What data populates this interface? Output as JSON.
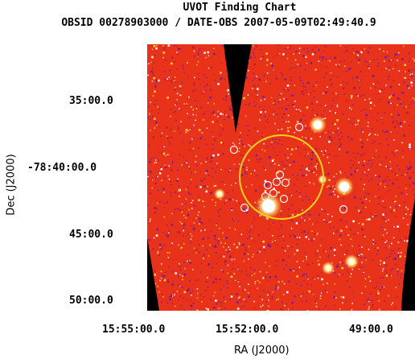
{
  "header": {
    "title": "UVOT Finding Chart",
    "subtitle": "OBSID 00278903000 / DATE-OBS 2007-05-09T02:49:40.9"
  },
  "axes": {
    "xlabel": "RA (J2000)",
    "ylabel": "Dec (J2000)",
    "xticks": [
      "15:55:00.0",
      "15:52:00.0",
      "49:00.0"
    ],
    "yticks": [
      "35:00.0",
      "-78:40:00.0",
      "45:00.0",
      "50:00.0"
    ]
  },
  "colors": {
    "background_field": "#e8331a",
    "noise_dark": "#7a1a9a",
    "noise_light": "#ffd23a",
    "circle": "#f2d21a",
    "source_marker": "#ffffff",
    "mask": "#000000"
  },
  "image": {
    "description_icon": "sky-image",
    "circle_count": 1,
    "source_marker_count": 11
  }
}
